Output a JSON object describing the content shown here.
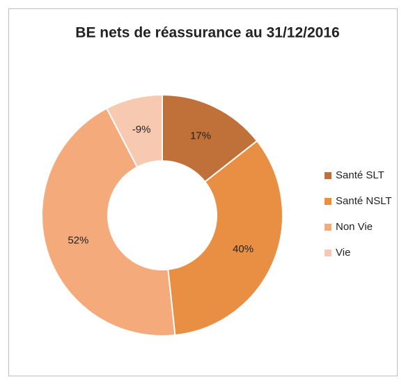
{
  "chart_data": {
    "type": "donut",
    "title": "BE nets de réassurance au 31/12/2016",
    "categories": [
      "Santé SLT",
      "Santé NSLT",
      "Non Vie",
      "Vie"
    ],
    "values": [
      17,
      40,
      52,
      -9
    ],
    "value_labels": [
      "17%",
      "40%",
      "52%",
      "-9%"
    ],
    "colors": [
      "#c0713a",
      "#e98f43",
      "#f4aa7b",
      "#f8c9b1"
    ],
    "legend": "right"
  }
}
